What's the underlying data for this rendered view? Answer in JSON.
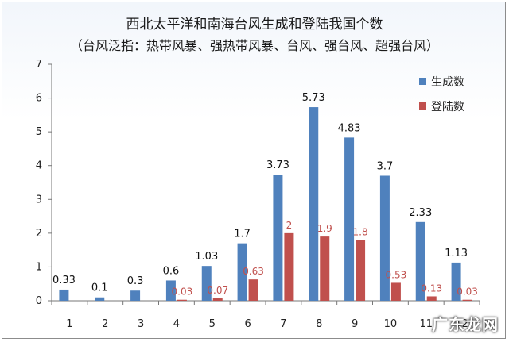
{
  "chart_data": {
    "type": "bar",
    "title": "西北太平洋和南海台风生成和登陆我国个数",
    "subtitle": "（台风泛指：热带风暴、强热带风暴、台风、强台风、超强台风）",
    "categories": [
      "1",
      "2",
      "3",
      "4",
      "5",
      "6",
      "7",
      "8",
      "9",
      "10",
      "11",
      "12"
    ],
    "ylim": [
      0,
      7
    ],
    "yticks": [
      0,
      1,
      2,
      3,
      4,
      5,
      6,
      7
    ],
    "grid": false,
    "legend_placement": "right",
    "series": [
      {
        "name": "生成数",
        "color": "#4f81bd",
        "values": [
          0.33,
          0.1,
          0.3,
          0.6,
          1.03,
          1.7,
          3.73,
          5.73,
          4.83,
          3.7,
          2.33,
          1.13
        ],
        "labels": [
          "0.33",
          "0.1",
          "0.3",
          "0.6",
          "1.03",
          "1.7",
          "3.73",
          "5.73",
          "4.83",
          "3.7",
          "2.33",
          "1.13"
        ]
      },
      {
        "name": "登陆数",
        "color": "#c0504d",
        "values": [
          0,
          0,
          0,
          0.03,
          0.07,
          0.63,
          2,
          1.9,
          1.8,
          0.53,
          0.13,
          0.03
        ],
        "labels": [
          "",
          "",
          "",
          "0.03",
          "0.07",
          "0.63",
          "2",
          "1.9",
          "1.8",
          "0.53",
          "0.13",
          "0.03"
        ]
      }
    ]
  },
  "watermark": "广东龙网"
}
